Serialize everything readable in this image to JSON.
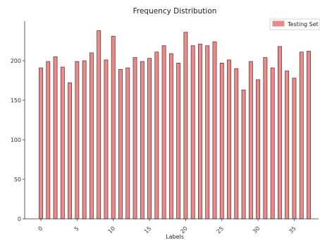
{
  "chart_data": {
    "type": "bar",
    "title": "Frequency Distribution",
    "xlabel": "Labels",
    "ylabel": "",
    "x": [
      0,
      1,
      2,
      3,
      4,
      5,
      6,
      7,
      8,
      9,
      10,
      11,
      12,
      13,
      14,
      15,
      16,
      17,
      18,
      19,
      20,
      21,
      22,
      23,
      24,
      25,
      26,
      27,
      28,
      29,
      30,
      31,
      32,
      33,
      34,
      35,
      36,
      37
    ],
    "series": [
      {
        "name": "Testing Set",
        "values": [
          191,
          199,
          205,
          192,
          172,
          199,
          200,
          210,
          238,
          201,
          231,
          189,
          191,
          204,
          199,
          203,
          211,
          219,
          209,
          197,
          236,
          219,
          221,
          219,
          224,
          197,
          201,
          190,
          163,
          199,
          176,
          204,
          191,
          218,
          187,
          178,
          211,
          212
        ]
      }
    ],
    "ylim": [
      0,
      250
    ],
    "yticks": [
      0,
      50,
      100,
      150,
      200
    ],
    "xticks": [
      0,
      5,
      10,
      15,
      20,
      25,
      30,
      35
    ],
    "grid": false,
    "legend_position": "top-right",
    "colors": {
      "bar_fill": "#e88b8b",
      "bar_edge": "#5a2a2a",
      "axis": "#333333"
    }
  }
}
